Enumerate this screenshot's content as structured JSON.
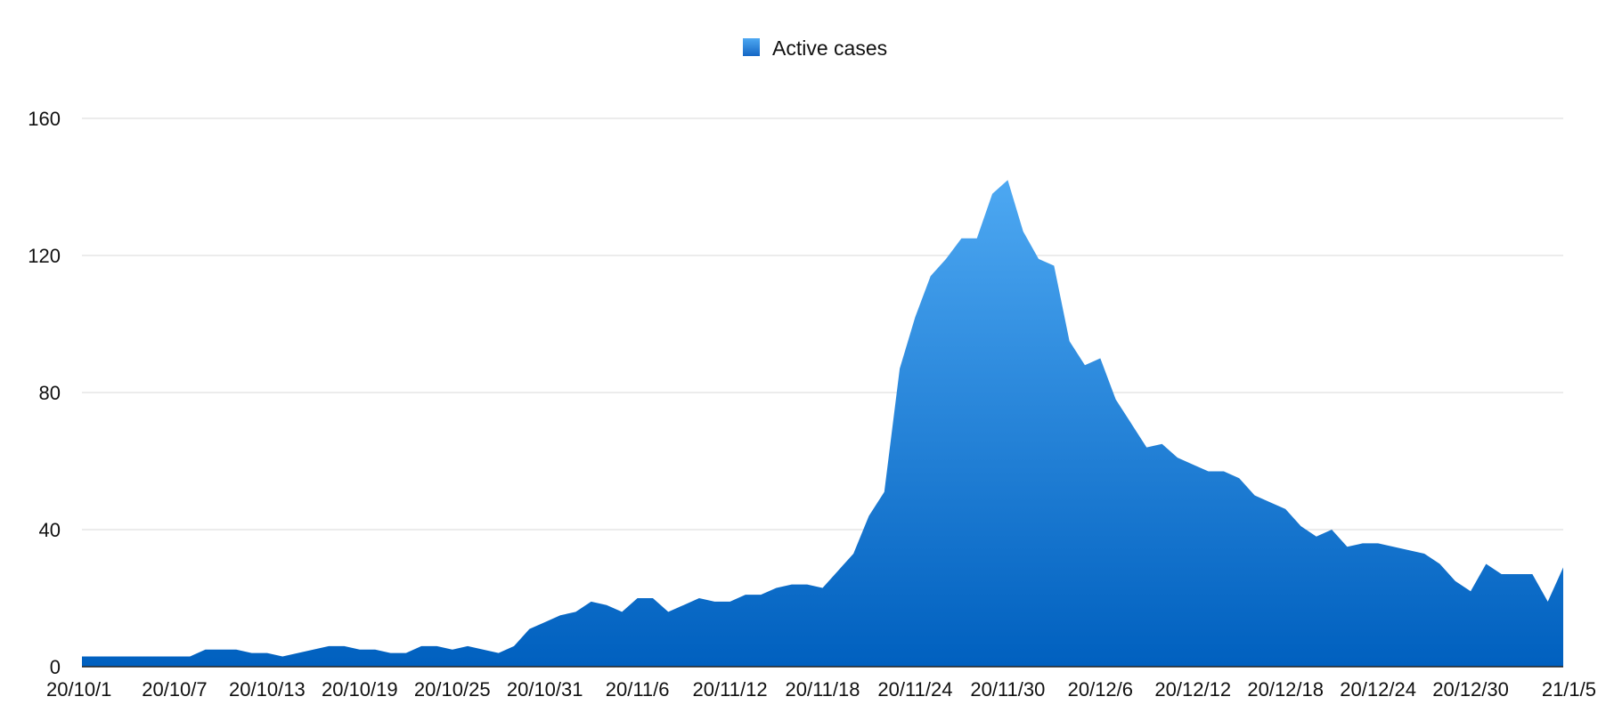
{
  "chart_data": {
    "type": "area",
    "title": "",
    "xlabel": "",
    "ylabel": "",
    "ylim": [
      0,
      160
    ],
    "yticks": [
      0,
      40,
      80,
      120,
      160
    ],
    "grid": true,
    "legend_position": "top-center",
    "colors": {
      "area_top": "#4da8f2",
      "area_bottom": "#0060bf",
      "legend_swatch": "#1e7fd8"
    },
    "x": [
      "20/10/1",
      "20/10/2",
      "20/10/3",
      "20/10/4",
      "20/10/5",
      "20/10/6",
      "20/10/7",
      "20/10/8",
      "20/10/9",
      "20/10/10",
      "20/10/11",
      "20/10/12",
      "20/10/13",
      "20/10/14",
      "20/10/15",
      "20/10/16",
      "20/10/17",
      "20/10/18",
      "20/10/19",
      "20/10/20",
      "20/10/21",
      "20/10/22",
      "20/10/23",
      "20/10/24",
      "20/10/25",
      "20/10/26",
      "20/10/27",
      "20/10/28",
      "20/10/29",
      "20/10/30",
      "20/10/31",
      "20/11/1",
      "20/11/2",
      "20/11/3",
      "20/11/4",
      "20/11/5",
      "20/11/6",
      "20/11/7",
      "20/11/8",
      "20/11/9",
      "20/11/10",
      "20/11/11",
      "20/11/12",
      "20/11/13",
      "20/11/14",
      "20/11/15",
      "20/11/16",
      "20/11/17",
      "20/11/18",
      "20/11/19",
      "20/11/20",
      "20/11/21",
      "20/11/22",
      "20/11/23",
      "20/11/24",
      "20/11/25",
      "20/11/26",
      "20/11/27",
      "20/11/28",
      "20/11/29",
      "20/11/30",
      "20/12/1",
      "20/12/2",
      "20/12/3",
      "20/12/4",
      "20/12/5",
      "20/12/6",
      "20/12/7",
      "20/12/8",
      "20/12/9",
      "20/12/10",
      "20/12/11",
      "20/12/12",
      "20/12/13",
      "20/12/14",
      "20/12/15",
      "20/12/16",
      "20/12/17",
      "20/12/18",
      "20/12/19",
      "20/12/20",
      "20/12/21",
      "20/12/22",
      "20/12/23",
      "20/12/24",
      "20/12/25",
      "20/12/26",
      "20/12/27",
      "20/12/28",
      "20/12/29",
      "20/12/30",
      "20/12/31",
      "21/1/1",
      "21/1/2",
      "21/1/3",
      "21/1/4",
      "21/1/5"
    ],
    "x_tick_labels": [
      "20/10/1",
      "20/10/7",
      "20/10/13",
      "20/10/19",
      "20/10/25",
      "20/10/31",
      "20/11/6",
      "20/11/12",
      "20/11/18",
      "20/11/24",
      "20/11/30",
      "20/12/6",
      "20/12/12",
      "20/12/18",
      "20/12/24",
      "20/12/30",
      "21/1/5"
    ],
    "series": [
      {
        "name": "Active cases",
        "values": [
          3,
          3,
          3,
          3,
          3,
          3,
          3,
          3,
          5,
          5,
          5,
          4,
          4,
          3,
          4,
          5,
          6,
          6,
          5,
          5,
          4,
          4,
          6,
          6,
          5,
          6,
          5,
          4,
          6,
          11,
          13,
          15,
          16,
          19,
          18,
          16,
          20,
          20,
          16,
          18,
          20,
          19,
          19,
          21,
          21,
          23,
          24,
          24,
          23,
          28,
          33,
          44,
          51,
          87,
          102,
          114,
          119,
          125,
          125,
          138,
          142,
          127,
          119,
          117,
          95,
          88,
          90,
          78,
          71,
          64,
          65,
          61,
          59,
          57,
          57,
          55,
          50,
          48,
          46,
          41,
          38,
          40,
          35,
          36,
          36,
          35,
          34,
          33,
          30,
          25,
          22,
          30,
          27,
          27,
          27,
          19,
          29
        ]
      }
    ]
  }
}
